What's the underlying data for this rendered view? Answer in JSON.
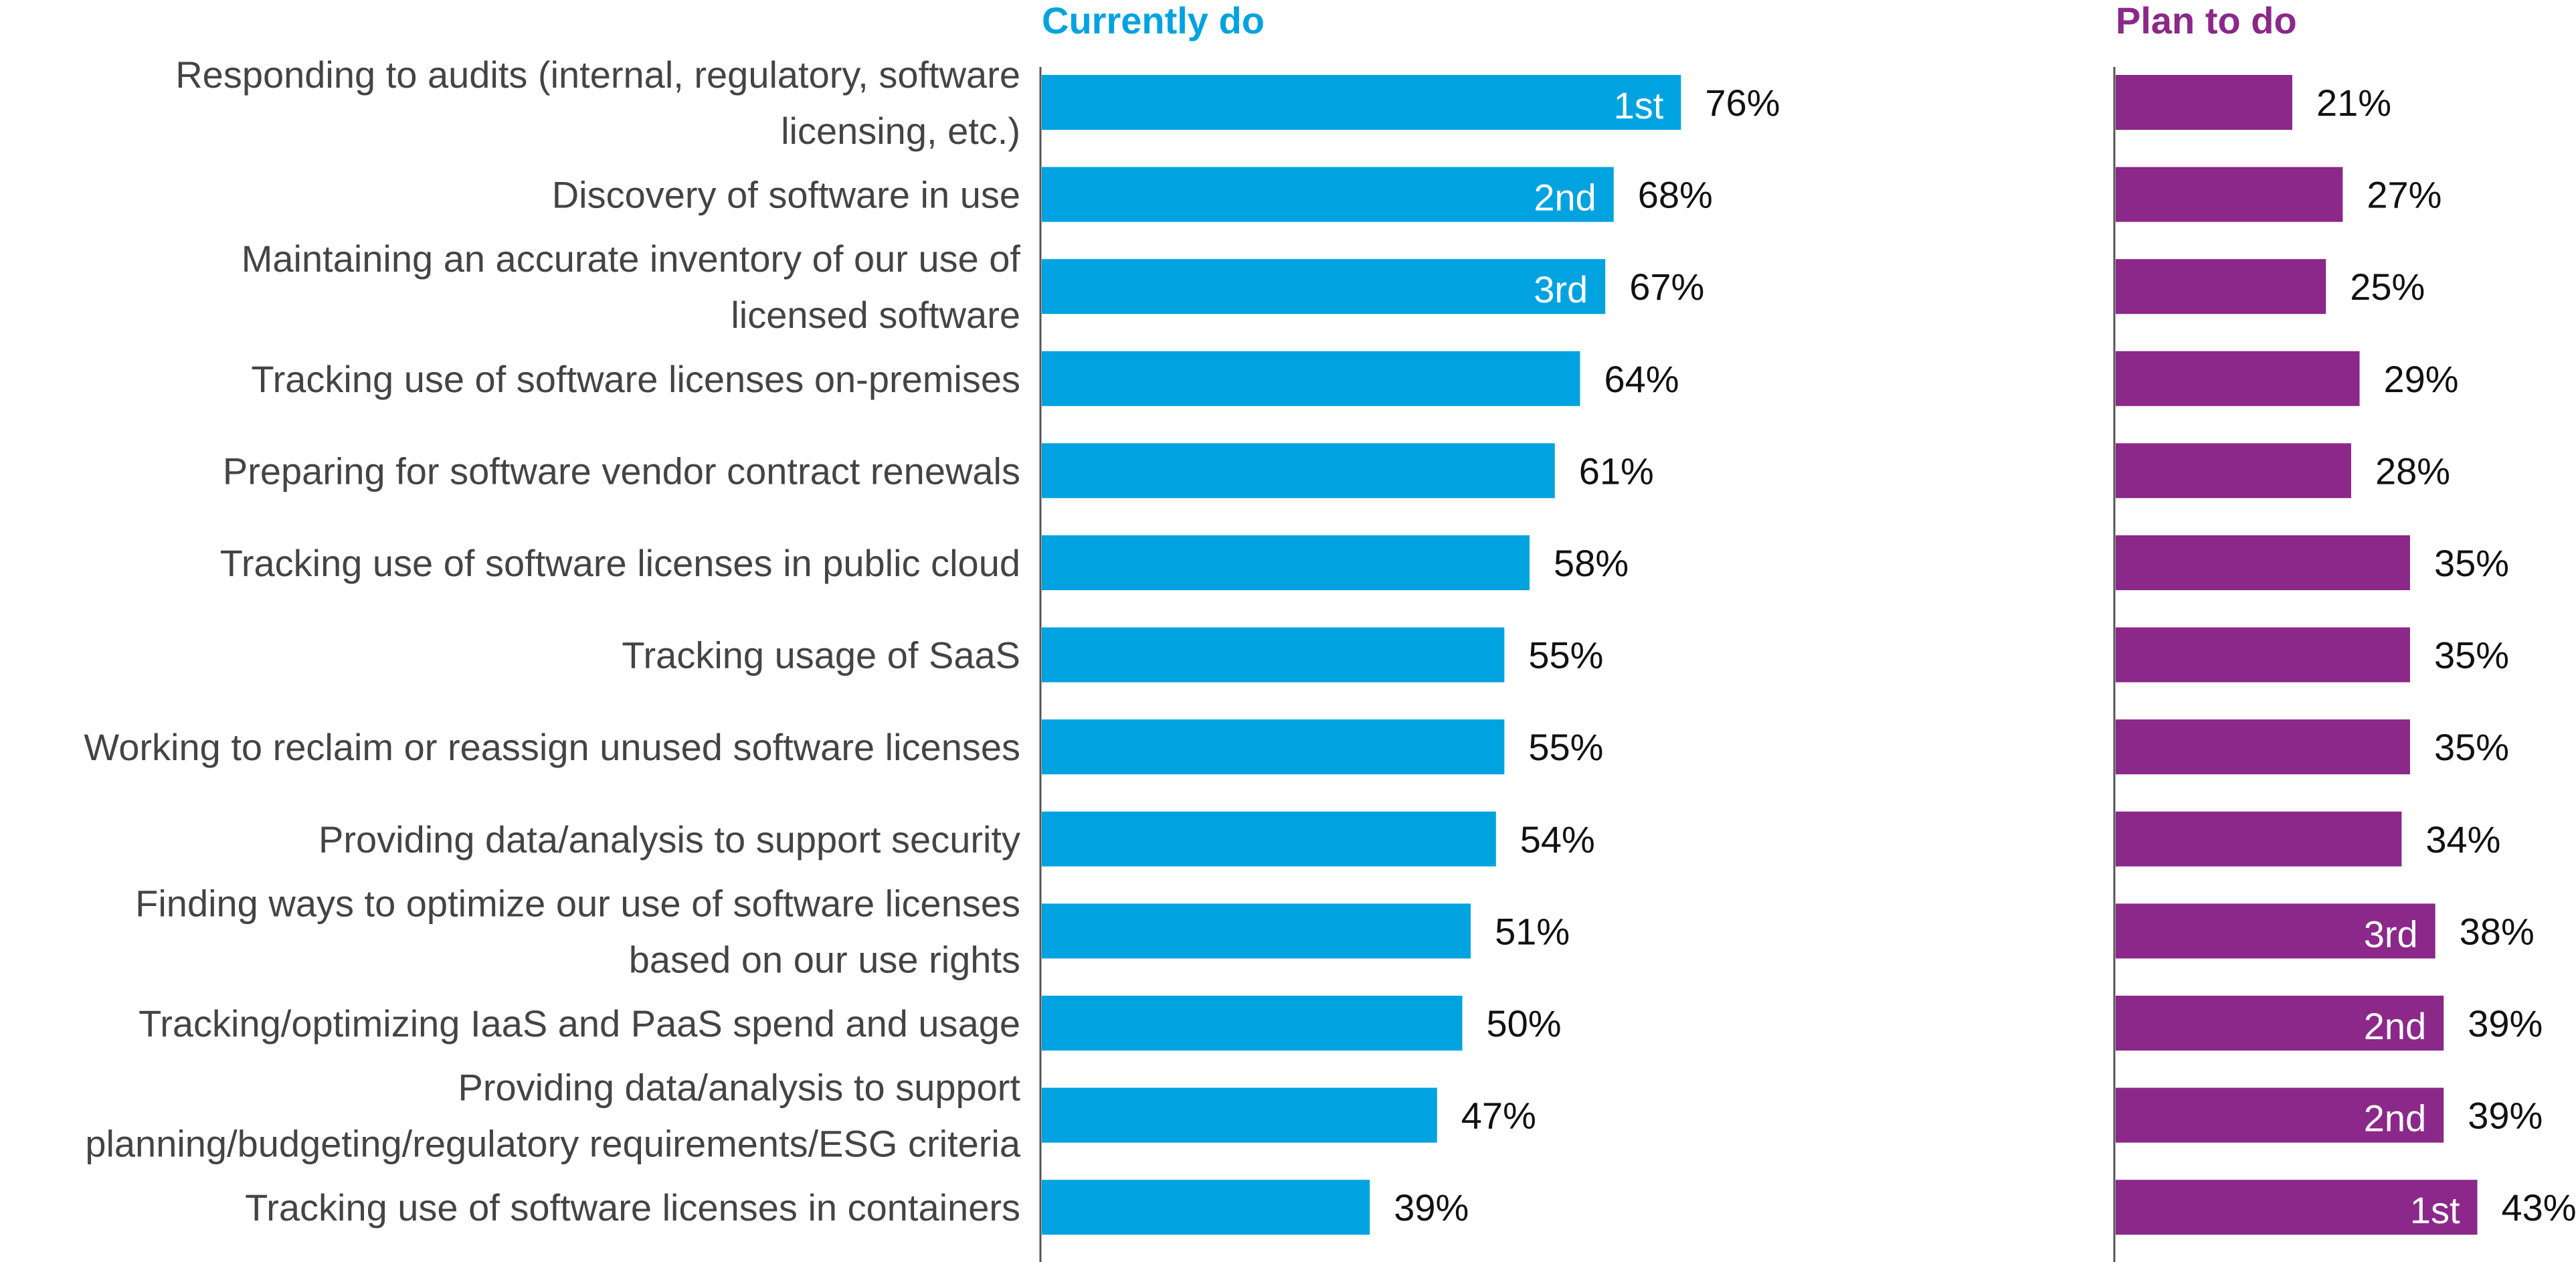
{
  "chart_data": {
    "type": "bar",
    "orientation": "horizontal",
    "value_format": "percent",
    "categories": [
      [
        "Responding to audits (internal, regulatory, software",
        "licensing, etc.)"
      ],
      [
        "Discovery of software in use"
      ],
      [
        "Maintaining an accurate inventory of our use of",
        "licensed software"
      ],
      [
        "Tracking use of software licenses on-premises"
      ],
      [
        "Preparing for software vendor contract renewals"
      ],
      [
        "Tracking use of software licenses in public cloud"
      ],
      [
        "Tracking usage of SaaS"
      ],
      [
        "Working to reclaim or reassign unused software licenses"
      ],
      [
        "Providing data/analysis to support security"
      ],
      [
        "Finding ways to optimize our use of software licenses",
        "based on our use rights"
      ],
      [
        "Tracking/optimizing IaaS and PaaS spend and usage"
      ],
      [
        "Providing data/analysis to support",
        "planning/budgeting/regulatory requirements/ESG criteria"
      ],
      [
        "Tracking use of software licenses in containers"
      ]
    ],
    "series": [
      {
        "name": "Currently do",
        "color": "#00A3DF",
        "values": [
          76,
          68,
          67,
          64,
          61,
          58,
          55,
          55,
          54,
          51,
          50,
          47,
          39
        ],
        "ranks": [
          "1st",
          "2nd",
          "3rd",
          "",
          "",
          "",
          "",
          "",
          "",
          "",
          "",
          "",
          ""
        ]
      },
      {
        "name": "Plan to do",
        "color": "#8B2889",
        "values": [
          21,
          27,
          25,
          29,
          28,
          35,
          35,
          35,
          34,
          38,
          39,
          39,
          43
        ],
        "ranks": [
          "",
          "",
          "",
          "",
          "",
          "",
          "",
          "",
          "",
          "3rd",
          "2nd",
          "2nd",
          "1st"
        ]
      }
    ],
    "xlim": [
      0,
      100
    ],
    "grid": false,
    "legend": "panel titles at top",
    "title": "",
    "xlabel": "",
    "ylabel": ""
  },
  "colors": {
    "currently": "#00A3DF",
    "plan": "#8B2889",
    "label_text": "#444444",
    "value_text": "#111111",
    "axis": "#555555"
  }
}
